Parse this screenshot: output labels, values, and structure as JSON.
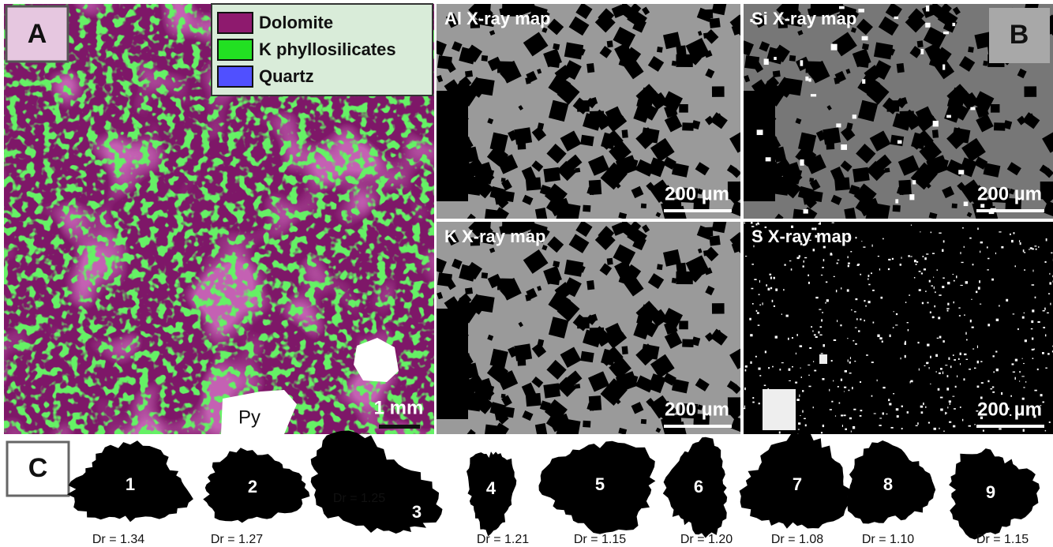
{
  "panel_a": {
    "label": "A",
    "legend": [
      {
        "name": "Dolomite",
        "color": "#8e1a6e"
      },
      {
        "name": "K phyllosilicates",
        "color": "#22e022"
      },
      {
        "name": "Quartz",
        "color": "#5050ff"
      }
    ],
    "mineral_label": "Py",
    "scale_bar": "1 mm"
  },
  "panel_b": {
    "label": "B",
    "maps": [
      {
        "title": "Al X-ray map",
        "scale_bar": "200 µm"
      },
      {
        "title": "Si X-ray map",
        "scale_bar": "200 µm"
      },
      {
        "title": "K X-ray map",
        "scale_bar": "200 µm"
      },
      {
        "title": "S X-ray map",
        "scale_bar": "200 µm"
      }
    ]
  },
  "panel_c": {
    "label": "C",
    "grains": [
      {
        "number": "1",
        "dr": "Dr = 1.34"
      },
      {
        "number": "2",
        "dr": "Dr = 1.27"
      },
      {
        "number": "3",
        "dr": "Dr = 1.25"
      },
      {
        "number": "4",
        "dr": "Dr = 1.21"
      },
      {
        "number": "5",
        "dr": "Dr = 1.15"
      },
      {
        "number": "6",
        "dr": "Dr = 1.20"
      },
      {
        "number": "7",
        "dr": "Dr = 1.08"
      },
      {
        "number": "8",
        "dr": "Dr = 1.10"
      },
      {
        "number": "9",
        "dr": "Dr = 1.15"
      }
    ]
  }
}
